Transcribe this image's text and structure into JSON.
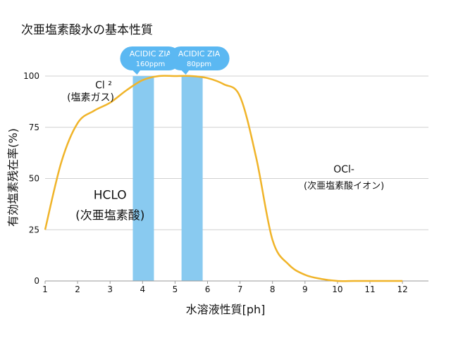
{
  "chart_data": {
    "type": "line",
    "title": "次亜塩素酸水の基本性質",
    "xlabel": "水溶液性質[ph]",
    "ylabel": "有効塩素残在率(%)",
    "xlim": [
      1,
      12.8
    ],
    "ylim": [
      0,
      100
    ],
    "x_ticks": [
      "1",
      "2",
      "3",
      "4",
      "5",
      "6",
      "7",
      "8",
      "9",
      "10",
      "11",
      "12"
    ],
    "y_ticks": [
      "0",
      "25",
      "50",
      "75",
      "100"
    ],
    "grid": true,
    "series": [
      {
        "color": "#F0B429",
        "x": [
          1,
          1.5,
          2,
          2.5,
          3,
          3.5,
          4,
          4.5,
          5,
          5.5,
          6,
          6.5,
          7,
          7.5,
          8,
          8.5,
          9,
          9.5,
          10,
          10.5,
          11,
          11.5,
          12
        ],
        "y": [
          25,
          58,
          77,
          83,
          87,
          93,
          98,
          100,
          100,
          100,
          99,
          96,
          90,
          60,
          20,
          8,
          3,
          1,
          0,
          0,
          0,
          0,
          0
        ]
      }
    ],
    "bands": [
      {
        "label": "ACIDIC ZIA",
        "sublabel": "160ppm",
        "x_from": 3.7,
        "x_to": 4.35,
        "color": "#89CAF0",
        "callout_color": "#5BB8F2"
      },
      {
        "label": "ACIDIC ZIA",
        "sublabel": "80ppm",
        "x_from": 5.2,
        "x_to": 5.85,
        "color": "#89CAF0",
        "callout_color": "#5BB8F2"
      }
    ],
    "annotations": [
      {
        "text": "Cl ²",
        "x": 2.8,
        "y": 94
      },
      {
        "text": "(塩素ガス)",
        "x": 2.4,
        "y": 88
      },
      {
        "text": "HCLO",
        "x": 3.0,
        "y": 40
      },
      {
        "text": "(次亜塩素酸)",
        "x": 3.0,
        "y": 30
      },
      {
        "text": "OCl-",
        "x": 10.2,
        "y": 53
      },
      {
        "text": "(次亜塩素酸イオン)",
        "x": 10.2,
        "y": 45
      }
    ]
  }
}
